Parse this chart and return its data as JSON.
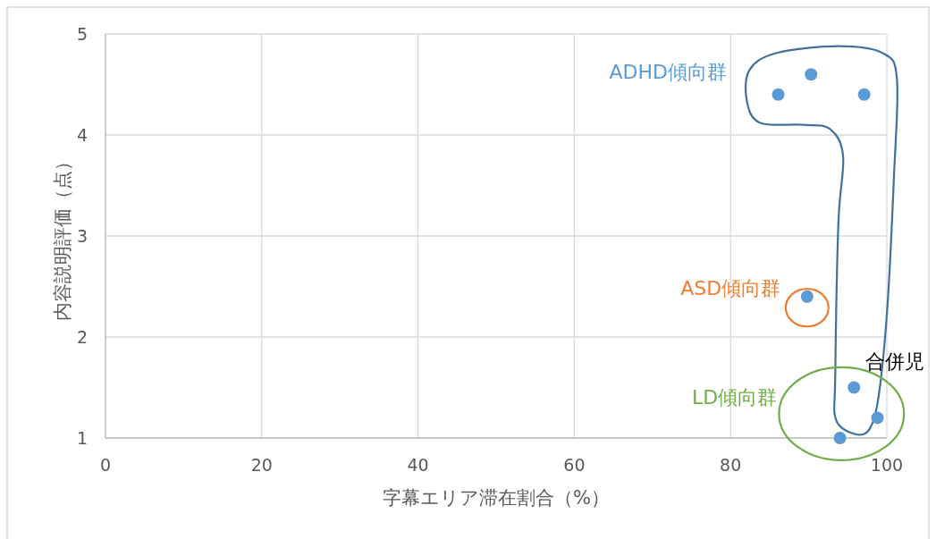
{
  "chart_data": {
    "type": "scatter",
    "xlabel": "字幕エリア滞在割合（%）",
    "ylabel": "内容説明評価（点）",
    "x": [
      86.1,
      90.3,
      97.1,
      89.8,
      95.8,
      98.8,
      94.0
    ],
    "series": [
      {
        "color": "#5b9bd5",
        "values": [
          4.4,
          4.6,
          4.4,
          2.4,
          1.5,
          1.2,
          1.0
        ]
      }
    ],
    "xlim": [
      0,
      100
    ],
    "xticks": [
      0,
      20,
      40,
      60,
      80,
      100
    ],
    "ylim": [
      1,
      5
    ],
    "yticks": [
      1,
      2,
      3,
      4,
      5
    ],
    "grid": true,
    "marker": "circle",
    "annotations": [
      "ADHD傾向群",
      "ASD傾向群",
      "LD傾向群",
      "合併児"
    ]
  }
}
